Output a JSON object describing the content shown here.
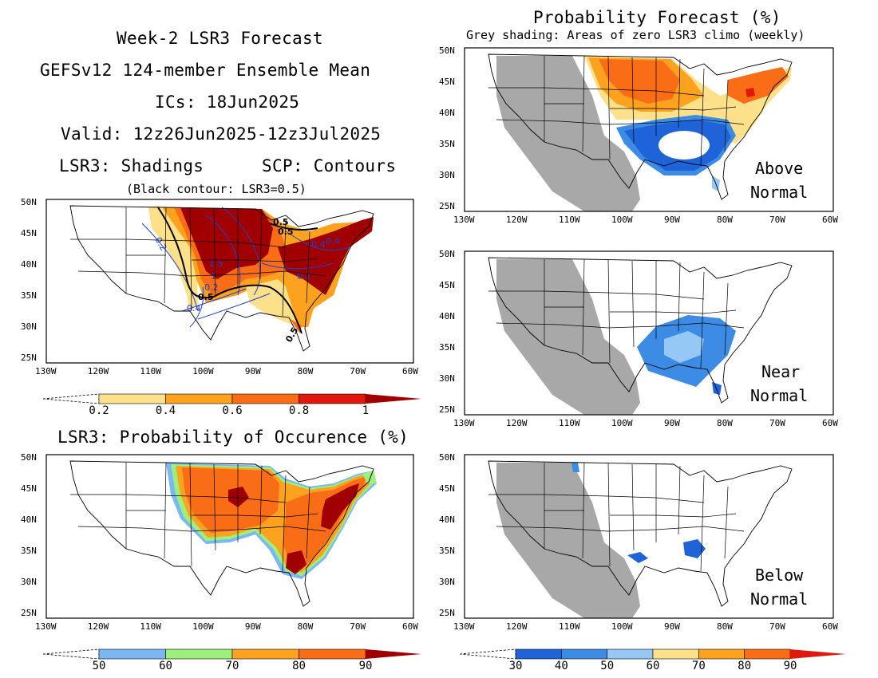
{
  "left_header": {
    "line1": "Week-2 LSR3 Forecast",
    "line2": "GEFSv12 124-member Ensemble Mean",
    "line3": "ICs: 18Jun2025",
    "line4": "Valid: 12z26Jun2025-12z3Jul2025",
    "line5_left": "LSR3: Shadings",
    "line5_right": "SCP: Contours",
    "line6": "(Black contour: LSR3=0.5)"
  },
  "right_header": {
    "title": "Probability Forecast (%)",
    "subtitle": "Grey shading: Areas of zero LSR3 climo (weekly)"
  },
  "axes": {
    "lat_labels": [
      "50N",
      "45N",
      "40N",
      "35N",
      "30N",
      "25N"
    ],
    "lon_labels": [
      "130W",
      "120W",
      "110W",
      "100W",
      "90W",
      "80W",
      "70W",
      "60W"
    ]
  },
  "maps": [
    {
      "id": "lsr3-ensemble-mean",
      "contour_labels": [
        "0.5",
        "0.5",
        "0.5",
        "0.5",
        "0.2",
        "1.5",
        "1",
        "0.2",
        "0.4",
        "0.4",
        "0.2",
        "0.4"
      ]
    },
    {
      "id": "lsr3-probability-occurrence",
      "title": "LSR3: Probability of Occurence (%)"
    },
    {
      "id": "prob-above-normal",
      "label_line1": "Above",
      "label_line2": "Normal"
    },
    {
      "id": "prob-near-normal",
      "label_line1": "Near",
      "label_line2": "Normal"
    },
    {
      "id": "prob-below-normal",
      "label_line1": "Below",
      "label_line2": "Normal"
    }
  ],
  "colorbars": [
    {
      "id": "lsr3-colorbar",
      "ticks": [
        "0.2",
        "0.4",
        "0.6",
        "0.8",
        "1"
      ],
      "colors": [
        "#ffffff",
        "#fde08a",
        "#fda21e",
        "#f86d15",
        "#e0180e",
        "#a00000"
      ]
    },
    {
      "id": "occurrence-colorbar",
      "ticks": [
        "50",
        "60",
        "70",
        "80",
        "90"
      ],
      "colors": [
        "#ffffff",
        "#7ab8f5",
        "#9df07c",
        "#fda21e",
        "#f86d15",
        "#a00000"
      ]
    },
    {
      "id": "probability-colorbar",
      "ticks": [
        "30",
        "40",
        "50",
        "60",
        "70",
        "80",
        "90"
      ],
      "colors": [
        "#ffffff",
        "#1e64d8",
        "#3c8ce6",
        "#96c8f5",
        "#fde08a",
        "#fda21e",
        "#f86d15",
        "#e0180e"
      ]
    }
  ],
  "colors": {
    "grey_zero_climo": "#a8a8a8",
    "map_border": "#000000"
  }
}
